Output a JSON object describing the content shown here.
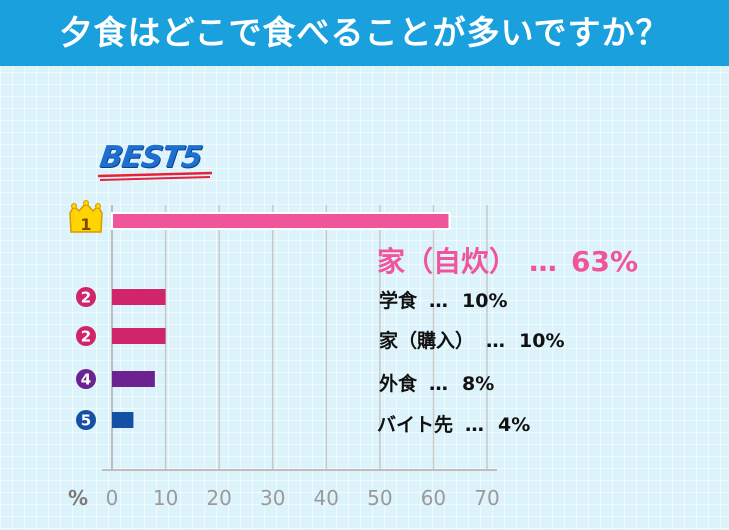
{
  "header": {
    "title": "夕食はどこで食べることが多いですか？"
  },
  "badge": {
    "text": "BEST5"
  },
  "colors": {
    "header": "#1aa0dc",
    "rank1": "#f0559b",
    "rank2": "#d0256b",
    "rank4": "#6c2290",
    "rank5": "#1450a3"
  },
  "chart_data": {
    "type": "bar",
    "orientation": "horizontal",
    "categories": [
      "家（自炊）",
      "学食",
      "家（購入）",
      "外食",
      "バイト先"
    ],
    "values": [
      63,
      10,
      10,
      8,
      4
    ],
    "ranks": [
      "1",
      "2",
      "2",
      "4",
      "5"
    ],
    "rank_icons": [
      "crown-icon",
      "circle-icon",
      "circle-icon",
      "circle-icon",
      "circle-icon"
    ],
    "value_labels": [
      "63%",
      "10%",
      "10%",
      "8%",
      "4%"
    ],
    "separator": "…",
    "xlabel": "%",
    "xlim": [
      0,
      70
    ],
    "x_ticks": [
      0,
      10,
      20,
      30,
      40,
      50,
      60,
      70
    ],
    "grid": true
  }
}
